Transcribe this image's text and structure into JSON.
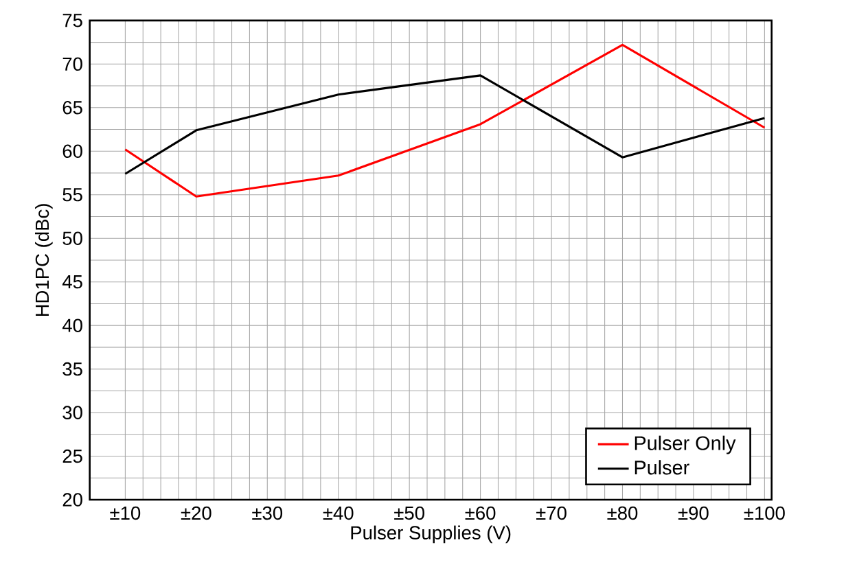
{
  "chart_data": {
    "type": "line",
    "xlabel": "Pulser Supplies (V)",
    "ylabel": "HD1PC (dBc)",
    "xlim": [
      5,
      101
    ],
    "ylim": [
      20,
      75
    ],
    "xticks": [
      {
        "value": 10,
        "label": "±10"
      },
      {
        "value": 20,
        "label": "±20"
      },
      {
        "value": 30,
        "label": "±30"
      },
      {
        "value": 40,
        "label": "±40"
      },
      {
        "value": 50,
        "label": "±50"
      },
      {
        "value": 60,
        "label": "±60"
      },
      {
        "value": 70,
        "label": "±70"
      },
      {
        "value": 80,
        "label": "±80"
      },
      {
        "value": 90,
        "label": "±90"
      },
      {
        "value": 100,
        "label": "±100"
      }
    ],
    "yticks": [
      20,
      25,
      30,
      35,
      40,
      45,
      50,
      55,
      60,
      65,
      70,
      75
    ],
    "x": [
      10,
      20,
      40,
      60,
      80,
      100
    ],
    "series": [
      {
        "name": "Pulser Only",
        "color": "#ff0000",
        "values": [
          60.2,
          54.8,
          57.2,
          63.1,
          72.2,
          62.7
        ]
      },
      {
        "name": "Pulser",
        "color": "#000000",
        "values": [
          57.4,
          62.4,
          66.5,
          68.7,
          59.3,
          63.8
        ]
      }
    ],
    "grid": true,
    "legend": "bottom right",
    "marker": "none",
    "line_style": "solid"
  }
}
